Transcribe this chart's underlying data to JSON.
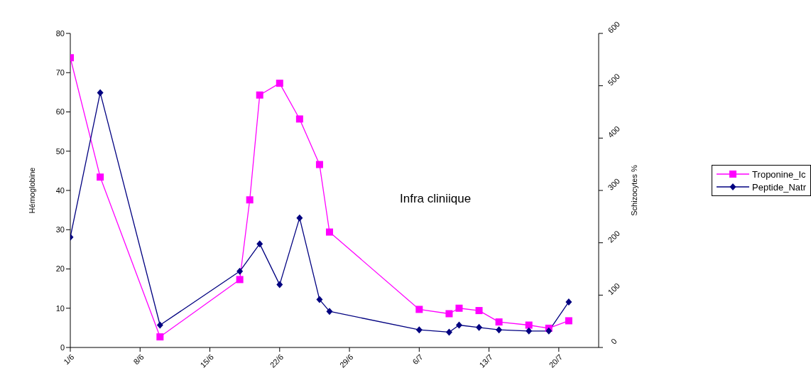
{
  "chart_data": {
    "type": "line",
    "ylabel": "Hémoglobine",
    "y2label": "Schizocytes %",
    "annotations": [
      "Infra cliniique"
    ],
    "xlim": [
      "--06-01",
      "--07-24"
    ],
    "xticks": [
      {
        "value": "--06-01",
        "label": "1/6"
      },
      {
        "value": "--06-08",
        "label": "8/6"
      },
      {
        "value": "--06-15",
        "label": "15/6"
      },
      {
        "value": "--06-22",
        "label": "22/6"
      },
      {
        "value": "--06-29",
        "label": "29/6"
      },
      {
        "value": "--07-06",
        "label": "6/7"
      },
      {
        "value": "--07-13",
        "label": "13/7"
      },
      {
        "value": "--07-20",
        "label": "20/7"
      }
    ],
    "ylim": [
      0,
      80
    ],
    "yticks": [
      0,
      10,
      20,
      30,
      40,
      50,
      60,
      70,
      80
    ],
    "y2lim": [
      0,
      600
    ],
    "y2ticks": [
      0,
      100,
      200,
      300,
      400,
      500,
      600
    ],
    "grid": false,
    "legend": "right",
    "line_style": "solid",
    "series": [
      {
        "name": "Troponine_Ic",
        "color": "#ff00ff",
        "marker": "square",
        "x": [
          "--06-01",
          "--06-04",
          "--06-10",
          "--06-18",
          "--06-19",
          "--06-20",
          "--06-22",
          "--06-24",
          "--06-26",
          "--06-27",
          "--07-06",
          "--07-09",
          "--07-10",
          "--07-12",
          "--07-14",
          "--07-17",
          "--07-19",
          "--07-21"
        ],
        "values": [
          73.8,
          43.4,
          2.7,
          17.3,
          37.6,
          64.3,
          67.3,
          58.2,
          46.6,
          29.4,
          9.7,
          8.6,
          10.0,
          9.4,
          6.5,
          5.7,
          4.9,
          6.8
        ]
      },
      {
        "name": "Peptide_Natr",
        "color": "#000080",
        "marker": "diamond",
        "x": [
          "--06-01",
          "--06-04",
          "--06-10",
          "--06-18",
          "--06-20",
          "--06-22",
          "--06-24",
          "--06-26",
          "--06-27",
          "--07-06",
          "--07-09",
          "--07-10",
          "--07-12",
          "--07-14",
          "--07-17",
          "--07-19",
          "--07-21"
        ],
        "values": [
          28.1,
          64.9,
          5.7,
          19.4,
          26.4,
          16.0,
          33.0,
          12.2,
          9.2,
          4.5,
          3.9,
          5.7,
          5.1,
          4.5,
          4.2,
          4.2,
          11.6
        ]
      }
    ]
  }
}
